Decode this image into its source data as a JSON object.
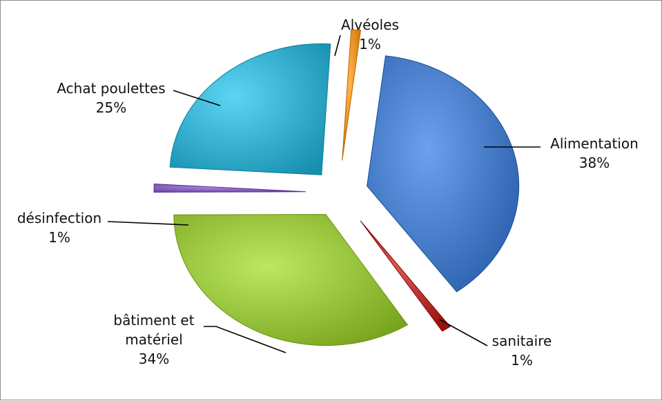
{
  "chart_data": {
    "type": "pie",
    "exploded": true,
    "style": "3d-gradient",
    "legend": "none",
    "slices": [
      {
        "label": "Alimentation",
        "percent_label": "38%",
        "value": 38,
        "color": "#3f74c0"
      },
      {
        "label": "sanitaire",
        "percent_label": "1%",
        "value": 1,
        "color": "#b02b28"
      },
      {
        "label": "bâtiment et matériel",
        "label_lines": [
          "bâtiment et",
          "matériel"
        ],
        "percent_label": "34%",
        "value": 34,
        "color": "#8fba34"
      },
      {
        "label": "désinfection",
        "percent_label": "1%",
        "value": 1,
        "color": "#7e57b5"
      },
      {
        "label": "Achat poulettes",
        "percent_label": "25%",
        "value": 25,
        "color": "#2fa7c6"
      },
      {
        "label": "Alvéoles",
        "percent_label": "1%",
        "value": 1,
        "color": "#e58a1d"
      }
    ]
  }
}
